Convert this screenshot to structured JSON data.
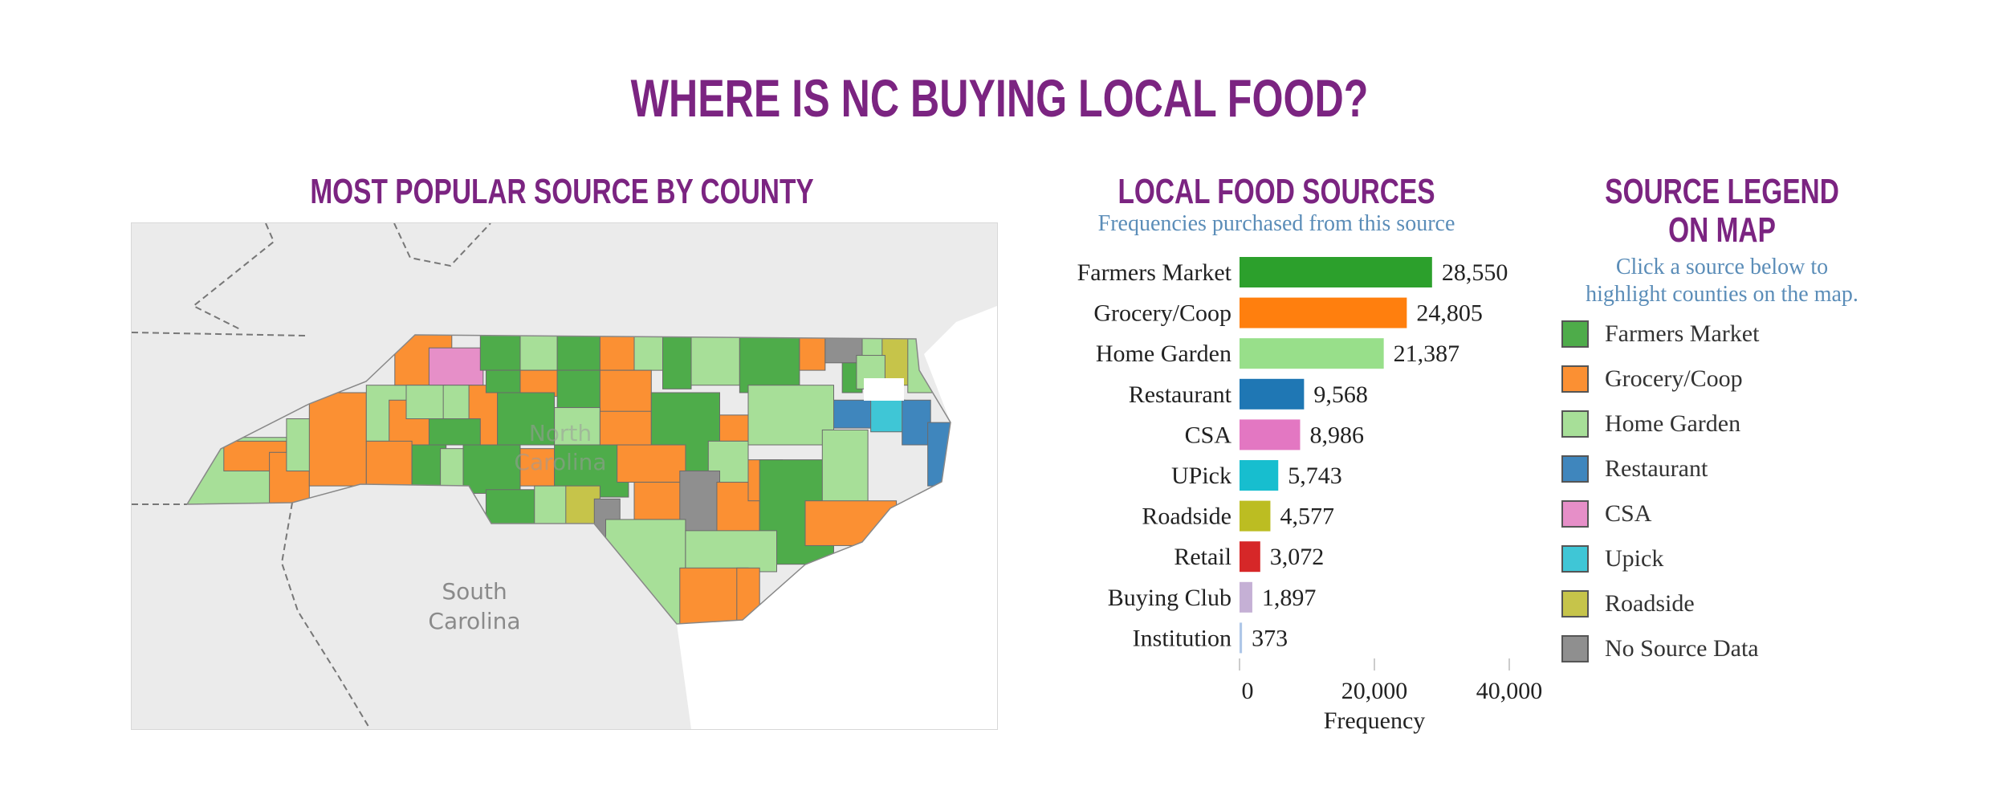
{
  "title": "WHERE IS NC BUYING LOCAL FOOD?",
  "map": {
    "title": "MOST POPULAR SOURCE BY COUNTY",
    "labels": {
      "nc1": "North",
      "nc2": "Carolina",
      "sc1": "South",
      "sc2": "Carolina"
    },
    "colors": {
      "farmers": "#4eac4a",
      "grocery": "#fb9033",
      "home": "#a7df98",
      "restaurant": "#3f86bd",
      "csa": "#e68fc8",
      "upick": "#3fc6d6",
      "roadside": "#c6c44a",
      "none": "#8f8f8f"
    }
  },
  "chart_data": {
    "type": "bar",
    "orientation": "horizontal",
    "title": "LOCAL FOOD SOURCES",
    "subtitle": "Frequencies purchased from this source",
    "xlabel": "Frequency",
    "xlim": [
      0,
      40000
    ],
    "xticks": [
      "0",
      "20,000",
      "40,000"
    ],
    "xtick_values": [
      0,
      20000,
      40000
    ],
    "grid": false,
    "categories": [
      "Farmers Market",
      "Grocery/Coop",
      "Home Garden",
      "Restaurant",
      "CSA",
      "UPick",
      "Roadside",
      "Retail",
      "Buying Club",
      "Institution"
    ],
    "values": [
      28550,
      24805,
      21387,
      9568,
      8986,
      5743,
      4577,
      3072,
      1897,
      373
    ],
    "value_labels": [
      "28,550",
      "24,805",
      "21,387",
      "9,568",
      "8,986",
      "5,743",
      "4,577",
      "3,072",
      "1,897",
      "373"
    ],
    "colors": [
      "#2ca02c",
      "#ff7f0e",
      "#98df8a",
      "#1f77b4",
      "#e377c2",
      "#17becf",
      "#bcbd22",
      "#d62728",
      "#c5b0d5",
      "#aec7e8"
    ]
  },
  "legend": {
    "title1": "SOURCE LEGEND",
    "title2": "ON MAP",
    "hint1": "Click a source below to",
    "hint2": "highlight counties on the map.",
    "items": [
      {
        "label": "Farmers Market",
        "color": "#4eac4a"
      },
      {
        "label": "Grocery/Coop",
        "color": "#fb9033"
      },
      {
        "label": "Home Garden",
        "color": "#a7df98"
      },
      {
        "label": "Restaurant",
        "color": "#3f86bd"
      },
      {
        "label": "CSA",
        "color": "#e68fc8"
      },
      {
        "label": "Upick",
        "color": "#3fc6d6"
      },
      {
        "label": "Roadside",
        "color": "#c6c44a"
      },
      {
        "label": "No Source Data",
        "color": "#8f8f8f"
      }
    ]
  }
}
